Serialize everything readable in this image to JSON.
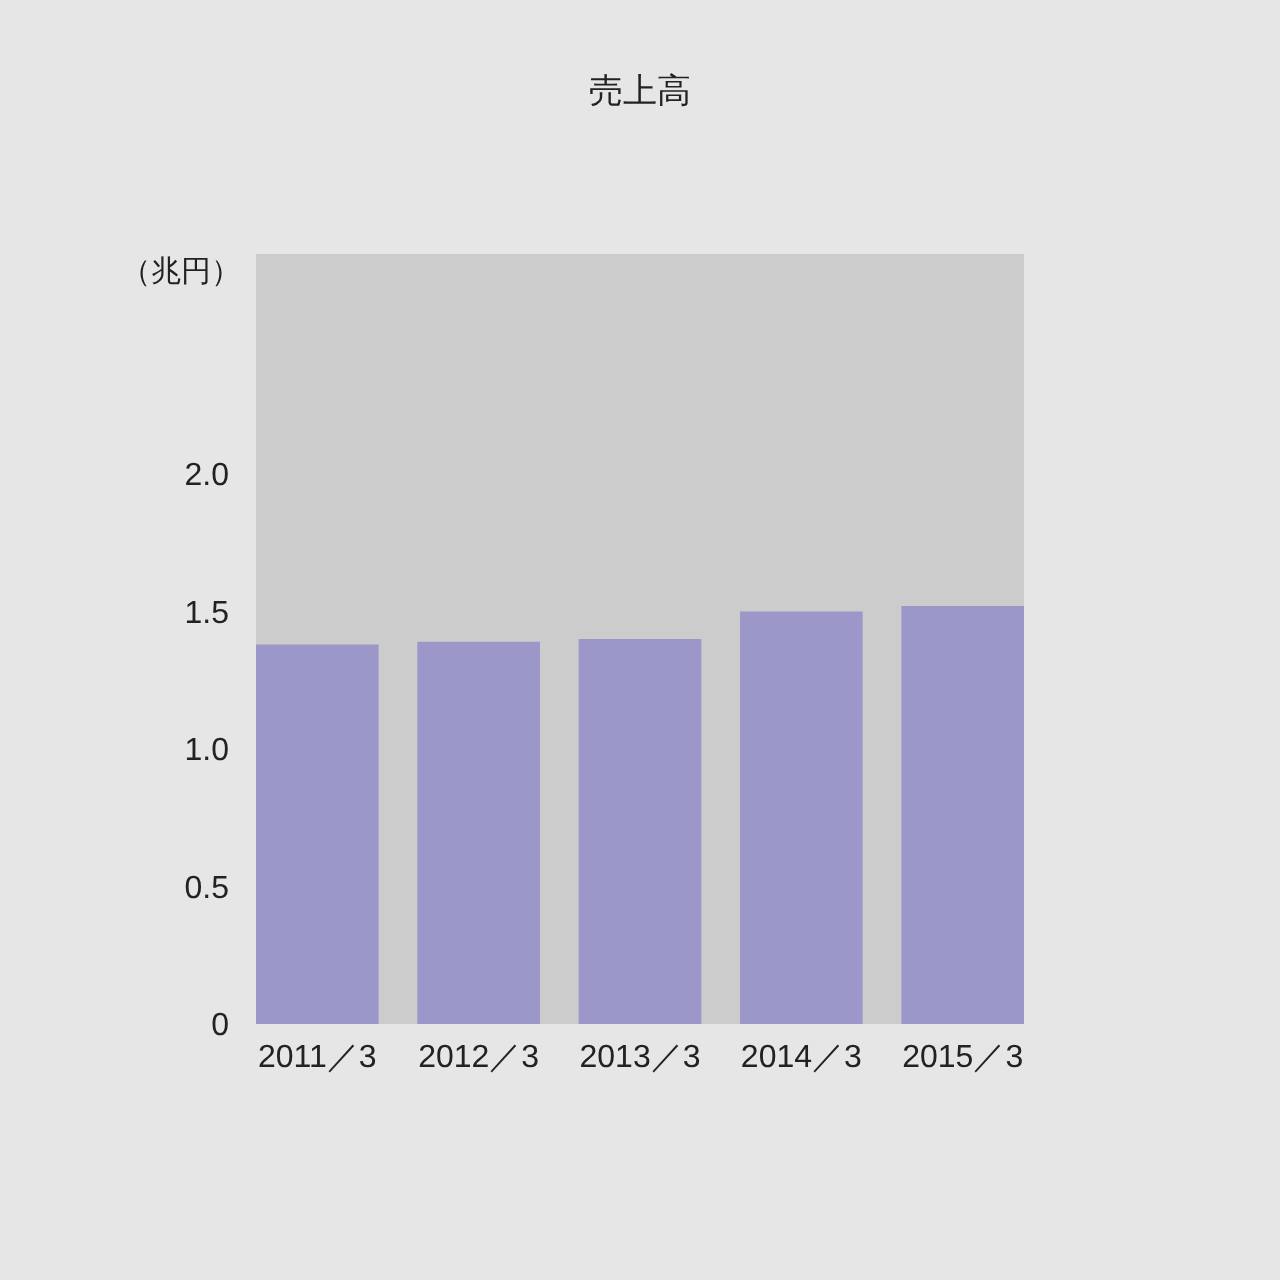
{
  "chart_data": {
    "type": "bar",
    "title": "売上高",
    "ylabel": "（兆円）",
    "categories": [
      "2011／3",
      "2012／3",
      "2013／3",
      "2014／3",
      "2015／3"
    ],
    "values": [
      1.38,
      1.39,
      1.4,
      1.5,
      1.52
    ],
    "color": "#9b97c9",
    "ylim": [
      0,
      2.8
    ],
    "yticks": [
      0,
      {
        "value": 0.5,
        "label": "0.5"
      },
      {
        "value": 1,
        "label": "1.0"
      },
      {
        "value": 1.5,
        "label": "1.5"
      },
      {
        "value": 2,
        "label": "2.0"
      }
    ],
    "grid": false
  }
}
